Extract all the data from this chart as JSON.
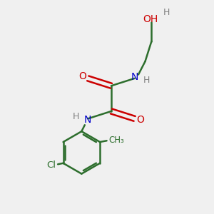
{
  "background_color": "#f0f0f0",
  "bond_color": "#2d6e2d",
  "atom_colors": {
    "N": "#0000cc",
    "O": "#cc0000",
    "H": "#808080",
    "Cl": "#2d6e2d",
    "C": "#2d6e2d"
  },
  "figsize": [
    3.0,
    3.0
  ],
  "dpi": 100
}
